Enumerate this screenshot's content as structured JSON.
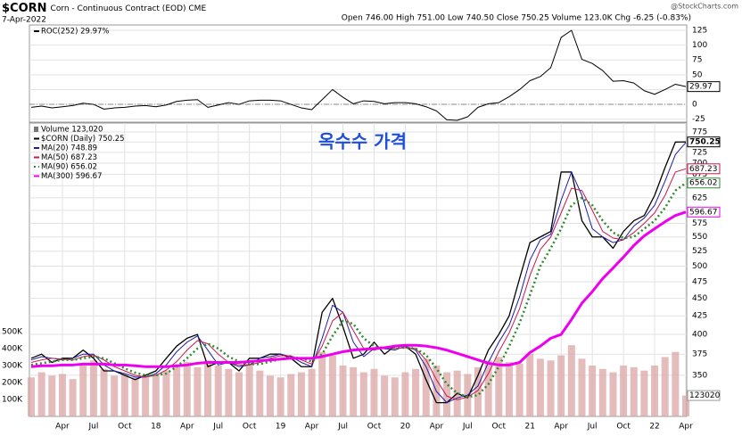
{
  "header": {
    "symbol": "$CORN",
    "description": "Corn - Continuous Contract (EOD) CME",
    "date": "7-Apr-2022",
    "quote": "Open 746.00 High 751.00 Low 740.50 Close 750.25 Volume 123.0K Chg -6.25 (-0.83%)",
    "watermark": "@StockCharts.com"
  },
  "chart_data": [
    {
      "type": "line",
      "xlim": [
        "2017-01",
        "2022-04"
      ],
      "ylim": [
        -30,
        134
      ],
      "yticks": [
        -25,
        0,
        25,
        50,
        75,
        100,
        125
      ],
      "grid": true,
      "x": [
        "2017-01",
        "2017-02",
        "2017-03",
        "2017-04",
        "2017-05",
        "2017-06",
        "2017-07",
        "2017-08",
        "2017-09",
        "2017-10",
        "2017-11",
        "2017-12",
        "2018-01",
        "2018-02",
        "2018-03",
        "2018-04",
        "2018-05",
        "2018-06",
        "2018-07",
        "2018-08",
        "2018-09",
        "2018-10",
        "2018-11",
        "2018-12",
        "2019-01",
        "2019-02",
        "2019-03",
        "2019-04",
        "2019-05",
        "2019-06",
        "2019-07",
        "2019-08",
        "2019-09",
        "2019-10",
        "2019-11",
        "2019-12",
        "2020-01",
        "2020-02",
        "2020-03",
        "2020-04",
        "2020-05",
        "2020-06",
        "2020-07",
        "2020-08",
        "2020-09",
        "2020-10",
        "2020-11",
        "2020-12",
        "2021-01",
        "2021-02",
        "2021-03",
        "2021-04",
        "2021-05",
        "2021-06",
        "2021-07",
        "2021-08",
        "2021-09",
        "2021-10",
        "2021-11",
        "2021-12",
        "2022-01",
        "2022-02",
        "2022-03",
        "2022-04"
      ],
      "series": [
        {
          "name": "ROC(252) 29.97%",
          "color": "#000000",
          "last_label": "29.97",
          "values": [
            -5,
            -3,
            -6,
            -4,
            -2,
            2,
            0,
            -8,
            -6,
            -5,
            -3,
            -2,
            -4,
            -1,
            5,
            7,
            8,
            -5,
            -1,
            3,
            0,
            6,
            7,
            7,
            6,
            0,
            -6,
            -9,
            8,
            25,
            12,
            1,
            6,
            5,
            1,
            3,
            3,
            1,
            -4,
            -11,
            -26,
            -27,
            -21,
            -5,
            1,
            3,
            13,
            25,
            40,
            47,
            62,
            113,
            125,
            76,
            69,
            57,
            39,
            40,
            36,
            23,
            17,
            25,
            34,
            29.97
          ]
        }
      ]
    },
    {
      "type": "line",
      "log": true,
      "xlim": [
        "2017-01",
        "2022-04"
      ],
      "ylim": [
        306,
        798
      ],
      "yticks": [
        350,
        375,
        400,
        425,
        450,
        475,
        500,
        525,
        550,
        575,
        600,
        625,
        650,
        675,
        700,
        725,
        750,
        775
      ],
      "grid": true,
      "y2lim": [
        0,
        1730000
      ],
      "y2ticks": [
        {
          "value": 100000,
          "label": "100K"
        },
        {
          "value": 200000,
          "label": "200K"
        },
        {
          "value": 300000,
          "label": "300K"
        },
        {
          "value": 400000,
          "label": "400K"
        },
        {
          "value": 500000,
          "label": "500K"
        }
      ],
      "annotation": "옥수수 가격",
      "xticks": [
        {
          "value": "2017-04",
          "label": "Apr"
        },
        {
          "value": "2017-07",
          "label": "Jul"
        },
        {
          "value": "2017-10",
          "label": "Oct"
        },
        {
          "value": "2018-01",
          "label": "18"
        },
        {
          "value": "2018-04",
          "label": "Apr"
        },
        {
          "value": "2018-07",
          "label": "Jul"
        },
        {
          "value": "2018-10",
          "label": "Oct"
        },
        {
          "value": "2019-01",
          "label": "19"
        },
        {
          "value": "2019-04",
          "label": "Apr"
        },
        {
          "value": "2019-07",
          "label": "Jul"
        },
        {
          "value": "2019-10",
          "label": "Oct"
        },
        {
          "value": "2020-01",
          "label": "20"
        },
        {
          "value": "2020-04",
          "label": "Apr"
        },
        {
          "value": "2020-07",
          "label": "Jul"
        },
        {
          "value": "2020-10",
          "label": "Oct"
        },
        {
          "value": "2021-01",
          "label": "21"
        },
        {
          "value": "2021-04",
          "label": "Apr"
        },
        {
          "value": "2021-07",
          "label": "Jul"
        },
        {
          "value": "2021-10",
          "label": "Oct"
        },
        {
          "value": "2022-01",
          "label": "22"
        },
        {
          "value": "2022-04",
          "label": "Apr"
        }
      ],
      "x": [
        "2017-01",
        "2017-02",
        "2017-03",
        "2017-04",
        "2017-05",
        "2017-06",
        "2017-07",
        "2017-08",
        "2017-09",
        "2017-10",
        "2017-11",
        "2017-12",
        "2018-01",
        "2018-02",
        "2018-03",
        "2018-04",
        "2018-05",
        "2018-06",
        "2018-07",
        "2018-08",
        "2018-09",
        "2018-10",
        "2018-11",
        "2018-12",
        "2019-01",
        "2019-02",
        "2019-03",
        "2019-04",
        "2019-05",
        "2019-06",
        "2019-07",
        "2019-08",
        "2019-09",
        "2019-10",
        "2019-11",
        "2019-12",
        "2020-01",
        "2020-02",
        "2020-03",
        "2020-04",
        "2020-05",
        "2020-06",
        "2020-07",
        "2020-08",
        "2020-09",
        "2020-10",
        "2020-11",
        "2020-12",
        "2021-01",
        "2021-02",
        "2021-03",
        "2021-04",
        "2021-05",
        "2021-06",
        "2021-07",
        "2021-08",
        "2021-09",
        "2021-10",
        "2021-11",
        "2021-12",
        "2022-01",
        "2022-02",
        "2022-03",
        "2022-04"
      ],
      "series": [
        {
          "name": "Volume 123,020",
          "color": "#dba6a6",
          "axis": "y2",
          "type": "bar",
          "last_label": "123020",
          "values": [
            230000,
            260000,
            240000,
            250000,
            220000,
            300000,
            330000,
            280000,
            240000,
            250000,
            230000,
            240000,
            250000,
            270000,
            300000,
            320000,
            290000,
            330000,
            300000,
            280000,
            260000,
            310000,
            270000,
            240000,
            230000,
            250000,
            260000,
            280000,
            380000,
            360000,
            300000,
            290000,
            260000,
            280000,
            240000,
            230000,
            260000,
            280000,
            340000,
            300000,
            260000,
            270000,
            250000,
            290000,
            330000,
            350000,
            320000,
            310000,
            370000,
            340000,
            330000,
            360000,
            420000,
            340000,
            300000,
            280000,
            260000,
            300000,
            290000,
            270000,
            300000,
            350000,
            380000,
            123020
          ]
        },
        {
          "name": "$CORN (Daily) 750.25",
          "color": "#000000",
          "width": 1.3,
          "last_label": "750.25",
          "values": [
            370,
            375,
            365,
            370,
            370,
            380,
            370,
            355,
            355,
            350,
            345,
            350,
            355,
            370,
            385,
            395,
            400,
            360,
            365,
            365,
            355,
            370,
            370,
            375,
            375,
            370,
            360,
            360,
            430,
            450,
            410,
            370,
            375,
            390,
            375,
            385,
            385,
            375,
            345,
            320,
            320,
            330,
            325,
            350,
            380,
            400,
            425,
            480,
            540,
            550,
            560,
            680,
            680,
            580,
            550,
            550,
            530,
            560,
            580,
            590,
            630,
            690,
            750,
            750.25
          ]
        },
        {
          "name": "MA(20) 748.89",
          "color": "#1c1ca8",
          "width": 1,
          "values": [
            368,
            372,
            370,
            368,
            370,
            375,
            375,
            362,
            355,
            352,
            348,
            348,
            352,
            362,
            378,
            390,
            398,
            380,
            362,
            365,
            360,
            362,
            370,
            372,
            375,
            372,
            365,
            360,
            395,
            440,
            430,
            390,
            372,
            382,
            382,
            380,
            385,
            380,
            360,
            332,
            320,
            325,
            328,
            338,
            365,
            390,
            412,
            452,
            510,
            545,
            555,
            620,
            680,
            630,
            565,
            550,
            540,
            545,
            570,
            585,
            610,
            660,
            720,
            748.89
          ]
        },
        {
          "name": "MA(50) 687.23",
          "color": "#c8184e",
          "width": 1,
          "last_label": "687.23",
          "values": [
            365,
            368,
            370,
            369,
            368,
            372,
            374,
            368,
            360,
            355,
            350,
            348,
            350,
            356,
            366,
            380,
            392,
            388,
            375,
            365,
            362,
            362,
            365,
            370,
            373,
            373,
            368,
            363,
            385,
            418,
            430,
            405,
            382,
            380,
            383,
            382,
            383,
            382,
            368,
            345,
            327,
            323,
            326,
            333,
            352,
            378,
            402,
            435,
            485,
            528,
            550,
            595,
            645,
            640,
            600,
            560,
            548,
            545,
            558,
            575,
            595,
            630,
            680,
            687.23
          ]
        },
        {
          "name": "MA(90) 656.02",
          "color": "#2e8b2e",
          "width": 2.5,
          "dash": "2 3",
          "last_label": "656.02",
          "values": [
            362,
            364,
            366,
            368,
            368,
            370,
            372,
            370,
            364,
            358,
            353,
            350,
            350,
            352,
            360,
            370,
            382,
            388,
            382,
            372,
            366,
            363,
            363,
            366,
            369,
            371,
            370,
            366,
            375,
            398,
            418,
            414,
            395,
            385,
            382,
            383,
            383,
            382,
            374,
            358,
            340,
            330,
            326,
            328,
            340,
            360,
            385,
            415,
            455,
            500,
            530,
            565,
            610,
            625,
            610,
            580,
            558,
            548,
            550,
            565,
            580,
            605,
            640,
            656.02
          ]
        },
        {
          "name": "MA(300) 596.67",
          "color": "#ee00ee",
          "width": 3,
          "last_label": "596.67",
          "values": [
            360,
            361,
            361,
            362,
            362,
            363,
            363,
            363,
            362,
            362,
            361,
            360,
            360,
            360,
            361,
            362,
            364,
            365,
            365,
            365,
            365,
            366,
            367,
            368,
            369,
            370,
            370,
            370,
            372,
            375,
            378,
            380,
            381,
            382,
            383,
            385,
            386,
            386,
            385,
            383,
            380,
            376,
            372,
            368,
            364,
            362,
            362,
            365,
            377,
            385,
            395,
            400,
            420,
            443,
            460,
            480,
            497,
            515,
            535,
            552,
            565,
            578,
            590,
            596.67
          ]
        }
      ]
    }
  ]
}
